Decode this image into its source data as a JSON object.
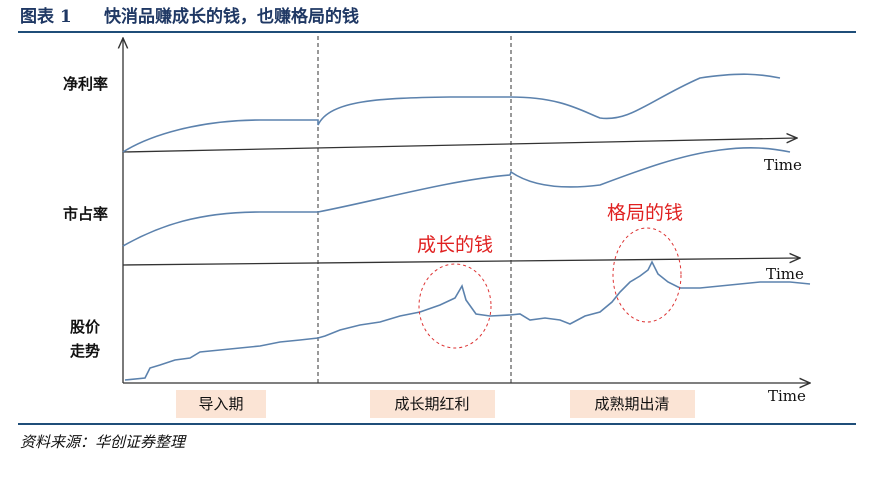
{
  "header": {
    "figure_no": "图表 1",
    "title": "快消品赚成长的钱，也赚格局的钱"
  },
  "rows": {
    "net_margin": "净利率",
    "market_share": "市占率",
    "stock_price": [
      "股价",
      "走势"
    ]
  },
  "time_labels": [
    "Time",
    "Time",
    "Time"
  ],
  "stages": [
    "导入期",
    "成长期红利",
    "成熟期出清"
  ],
  "annotations": [
    "成长的钱",
    "格局的钱"
  ],
  "source": "资料来源：华创证券整理"
}
